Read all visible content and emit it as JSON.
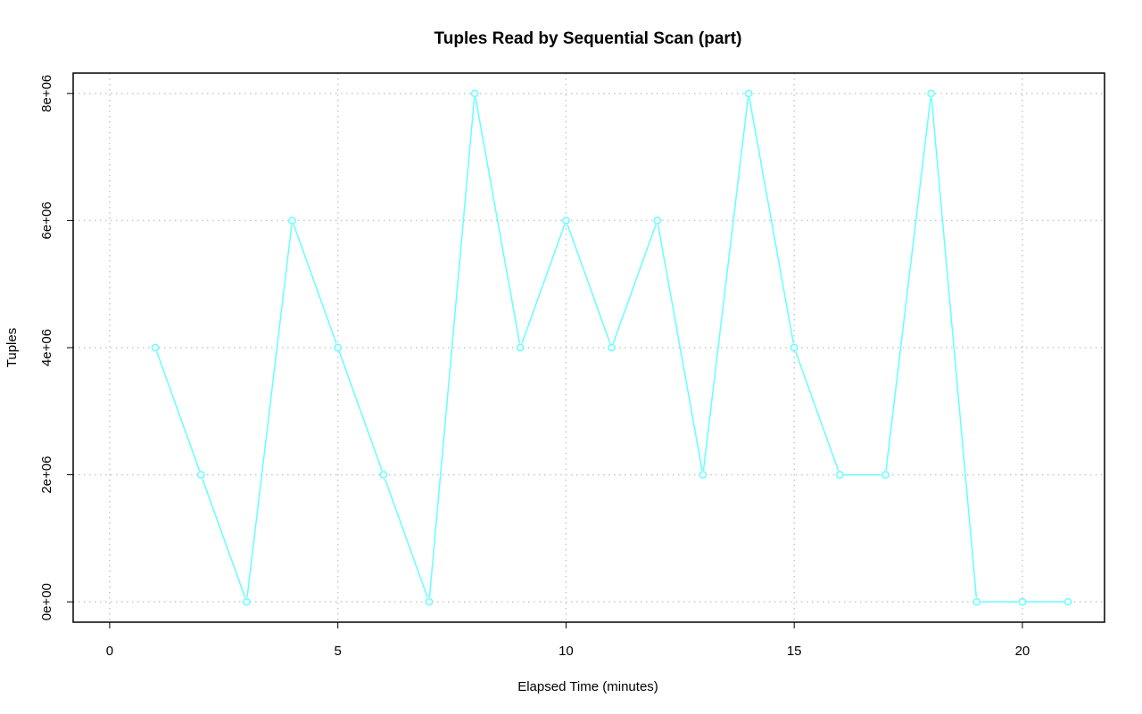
{
  "chart_data": {
    "type": "line",
    "title": "Tuples Read by Sequential Scan (part)",
    "xlabel": "Elapsed Time (minutes)",
    "ylabel": "Tuples",
    "xlim": [
      -0.8,
      21.8
    ],
    "ylim": [
      -320000,
      8320000
    ],
    "x_ticks": [
      0,
      5,
      10,
      15,
      20
    ],
    "x_tick_labels": [
      "0",
      "5",
      "10",
      "15",
      "20"
    ],
    "y_ticks": [
      0,
      2000000,
      4000000,
      6000000,
      8000000
    ],
    "y_tick_labels": [
      "0e+00",
      "2e+06",
      "4e+06",
      "6e+06",
      "8e+06"
    ],
    "grid": true,
    "series": [
      {
        "color": "#66ffff",
        "marker": "open-circle",
        "x": [
          1,
          2,
          3,
          4,
          5,
          6,
          7,
          8,
          9,
          10,
          11,
          12,
          13,
          14,
          15,
          16,
          17,
          18,
          19,
          20,
          21
        ],
        "values": [
          4000000,
          2000000,
          0,
          6000000,
          4000000,
          2000000,
          0,
          8000000,
          4000000,
          6000000,
          4000000,
          6000000,
          2000000,
          8000000,
          4000000,
          2000000,
          2000000,
          8000000,
          0,
          0,
          0
        ]
      }
    ]
  }
}
